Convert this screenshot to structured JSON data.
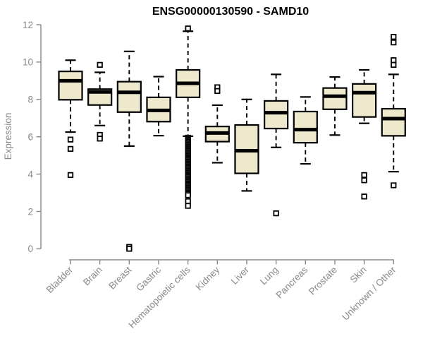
{
  "chart_data": {
    "type": "boxplot",
    "title": "ENSG00000130590 - SAMD10",
    "xlabel": "",
    "ylabel": "Expression",
    "ylim": [
      0,
      12
    ],
    "yticks": [
      0,
      2,
      4,
      6,
      8,
      10,
      12
    ],
    "grid": false,
    "legend": false,
    "categories": [
      "Bladder",
      "Brain",
      "Breast",
      "Gastric",
      "Hematopoietic cells",
      "Kidney",
      "Liver",
      "Lung",
      "Pancreas",
      "Prostate",
      "Skin",
      "Unknown / Other"
    ],
    "series": [
      {
        "category": "Bladder",
        "whisker_low": 6.25,
        "q1": 7.98,
        "median": 9.0,
        "q3": 9.5,
        "whisker_high": 10.1,
        "outliers": [
          5.85,
          5.35,
          3.95
        ]
      },
      {
        "category": "Brain",
        "whisker_low": 6.6,
        "q1": 7.7,
        "median": 8.4,
        "q3": 8.55,
        "whisker_high": 9.45,
        "outliers": [
          9.85,
          6.1,
          5.9
        ]
      },
      {
        "category": "Breast",
        "whisker_low": 5.5,
        "q1": 7.32,
        "median": 8.38,
        "q3": 8.95,
        "whisker_high": 10.57,
        "outliers": [
          0.1,
          0.0
        ]
      },
      {
        "category": "Gastric",
        "whisker_low": 6.06,
        "q1": 6.81,
        "median": 7.41,
        "q3": 8.11,
        "whisker_high": 9.22,
        "outliers": []
      },
      {
        "category": "Hematopoietic cells",
        "whisker_low": 6.03,
        "q1": 8.11,
        "median": 8.86,
        "q3": 9.58,
        "whisker_high": 11.65,
        "outliers": [
          11.8,
          5.95,
          5.88,
          5.81,
          5.74,
          5.67,
          5.6,
          5.53,
          5.46,
          5.39,
          5.32,
          5.25,
          5.18,
          5.11,
          5.04,
          4.97,
          4.9,
          4.83,
          4.76,
          4.69,
          4.62,
          4.55,
          4.48,
          4.41,
          4.34,
          4.27,
          4.2,
          4.13,
          4.06,
          3.99,
          3.92,
          3.85,
          3.78,
          3.71,
          3.64,
          3.57,
          3.5,
          3.43,
          3.36,
          3.29,
          3.22,
          3.15,
          3.08,
          3.01,
          2.94,
          2.87,
          2.55,
          2.3
        ]
      },
      {
        "category": "Kidney",
        "whisker_low": 4.61,
        "q1": 5.74,
        "median": 6.2,
        "q3": 6.55,
        "whisker_high": 7.69,
        "outliers": [
          8.65,
          8.45
        ]
      },
      {
        "category": "Liver",
        "whisker_low": 3.1,
        "q1": 4.04,
        "median": 5.25,
        "q3": 6.63,
        "whisker_high": 8.0,
        "outliers": []
      },
      {
        "category": "Lung",
        "whisker_low": 5.43,
        "q1": 6.44,
        "median": 7.29,
        "q3": 7.92,
        "whisker_high": 9.34,
        "outliers": [
          1.9
        ]
      },
      {
        "category": "Pancreas",
        "whisker_low": 4.55,
        "q1": 5.68,
        "median": 6.38,
        "q3": 7.35,
        "whisker_high": 8.13,
        "outliers": []
      },
      {
        "category": "Prostate",
        "whisker_low": 6.09,
        "q1": 7.47,
        "median": 8.17,
        "q3": 8.61,
        "whisker_high": 9.2,
        "outliers": []
      },
      {
        "category": "Skin",
        "whisker_low": 6.72,
        "q1": 7.06,
        "median": 8.36,
        "q3": 8.83,
        "whisker_high": 9.58,
        "outliers": [
          3.95,
          3.67,
          2.8
        ]
      },
      {
        "category": "Unknown / Other",
        "whisker_low": 4.13,
        "q1": 6.05,
        "median": 6.97,
        "q3": 7.5,
        "whisker_high": 9.34,
        "outliers": [
          11.35,
          11.05,
          10.1,
          9.85,
          3.4
        ]
      }
    ],
    "colors": {
      "box_fill": "#EEE8CD",
      "box_stroke": "#000000",
      "median": "#000000",
      "whisker": "#000000",
      "outlier_stroke": "#000000",
      "outlier_fill": "#FFFFFF",
      "axis": "#898989",
      "tick_label": "#898989",
      "title": "#000000",
      "background": "#FFFFFF"
    }
  }
}
